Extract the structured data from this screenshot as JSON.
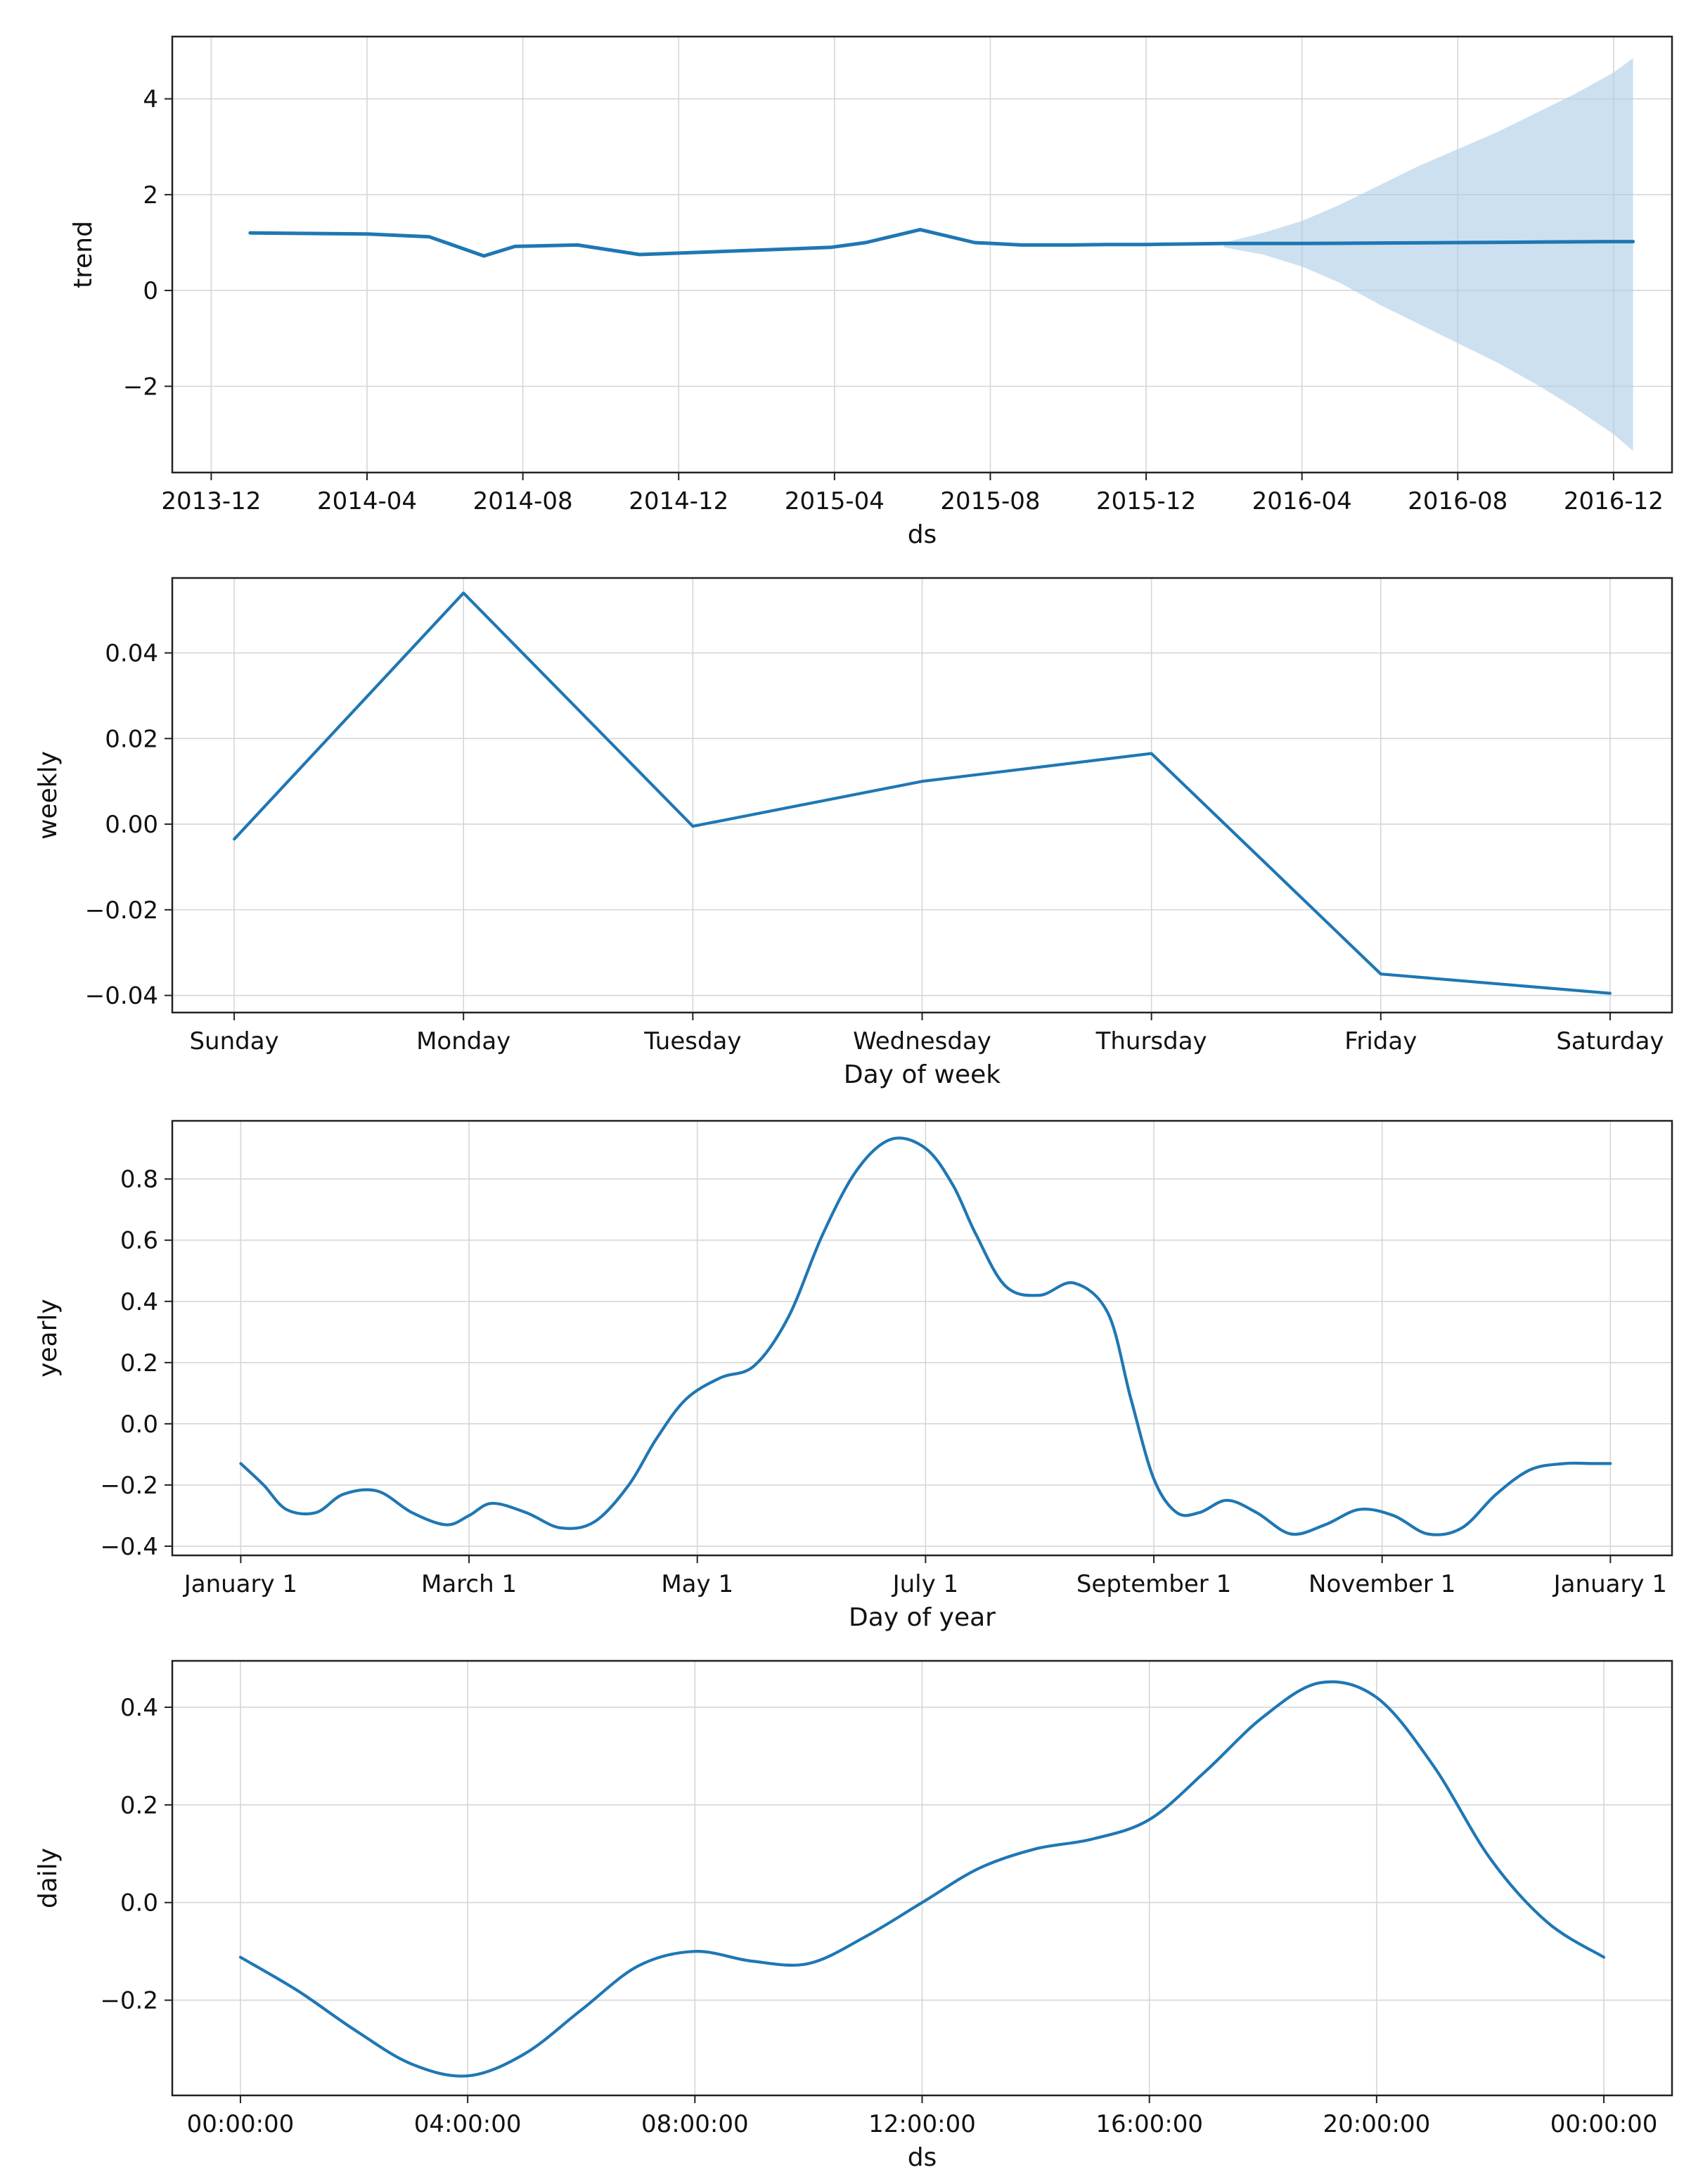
{
  "colors": {
    "line": "#1f77b4",
    "band": "#aecde6",
    "grid": "#d6d6d6"
  },
  "chart_data": [
    {
      "type": "area",
      "name": "trend",
      "xlabel": "ds",
      "ylabel": "trend",
      "xlim": [
        -1.0,
        37.5
      ],
      "ylim": [
        -3.8,
        5.3
      ],
      "x_ticks": [
        0,
        4,
        8,
        12,
        16,
        20,
        24,
        28,
        32,
        36
      ],
      "x_tick_labels": [
        "2013-12",
        "2014-04",
        "2014-08",
        "2014-12",
        "2015-04",
        "2015-08",
        "2015-12",
        "2016-04",
        "2016-08",
        "2016-12"
      ],
      "y_ticks": [
        -2,
        0,
        2,
        4
      ],
      "y_tick_labels": [
        "−2",
        "0",
        "2",
        "4"
      ],
      "grid": true,
      "series": [
        {
          "name": "trend",
          "x": [
            1.0,
            4.0,
            5.6,
            7.0,
            7.8,
            9.4,
            11.0,
            15.9,
            16.8,
            18.2,
            19.6,
            20.8,
            22.0,
            23.0,
            24.0,
            25.0,
            26.0,
            28.0,
            30.0,
            32.0,
            34.0,
            36.0,
            36.5
          ],
          "y": [
            1.2,
            1.18,
            1.12,
            0.72,
            0.92,
            0.95,
            0.75,
            0.9,
            1.0,
            1.27,
            1.0,
            0.95,
            0.95,
            0.96,
            0.96,
            0.97,
            0.98,
            0.98,
            0.99,
            1.0,
            1.01,
            1.02,
            1.02
          ]
        }
      ],
      "band": {
        "name": "trend uncertainty",
        "x": [
          26.0,
          27.0,
          28.0,
          29.0,
          30.0,
          31.0,
          32.0,
          33.0,
          34.0,
          35.0,
          36.0,
          36.5
        ],
        "upper": [
          1.0,
          1.2,
          1.45,
          1.8,
          2.2,
          2.6,
          2.95,
          3.3,
          3.7,
          4.1,
          4.55,
          4.85
        ],
        "lower": [
          0.9,
          0.75,
          0.5,
          0.15,
          -0.3,
          -0.7,
          -1.1,
          -1.5,
          -1.95,
          -2.45,
          -3.0,
          -3.35
        ]
      }
    },
    {
      "type": "line",
      "name": "weekly",
      "xlabel": "Day of week",
      "ylabel": "weekly",
      "xlim": [
        -0.27,
        6.27
      ],
      "ylim": [
        -0.044,
        0.0575
      ],
      "x_ticks": [
        0,
        1,
        2,
        3,
        4,
        5,
        6
      ],
      "x_tick_labels": [
        "Sunday",
        "Monday",
        "Tuesday",
        "Wednesday",
        "Thursday",
        "Friday",
        "Saturday"
      ],
      "y_ticks": [
        -0.04,
        -0.02,
        0.0,
        0.02,
        0.04
      ],
      "y_tick_labels": [
        "−0.04",
        "−0.02",
        "0.00",
        "0.02",
        "0.04"
      ],
      "grid": true,
      "series": [
        {
          "name": "weekly",
          "x": [
            0,
            1,
            2,
            3,
            4,
            5,
            6
          ],
          "y": [
            -0.0035,
            0.054,
            -0.0005,
            0.01,
            0.0165,
            -0.035,
            -0.0395
          ]
        }
      ]
    },
    {
      "type": "line",
      "name": "yearly",
      "xlabel": "Day of year",
      "ylabel": "yearly",
      "xlim": [
        -0.3,
        6.27
      ],
      "ylim": [
        -0.43,
        0.99
      ],
      "x_ticks": [
        0,
        1,
        2,
        3,
        4,
        5,
        6
      ],
      "x_tick_labels": [
        "January 1",
        "March 1",
        "May 1",
        "July 1",
        "September 1",
        "November 1",
        "January 1"
      ],
      "y_ticks": [
        -0.4,
        -0.2,
        0.0,
        0.2,
        0.4,
        0.6,
        0.8
      ],
      "y_tick_labels": [
        "−0.4",
        "−0.2",
        "0.0",
        "0.2",
        "0.4",
        "0.6",
        "0.8"
      ],
      "grid": true,
      "series": [
        {
          "name": "yearly",
          "x": [
            0.0,
            0.1,
            0.2,
            0.33,
            0.45,
            0.6,
            0.75,
            0.9,
            1.0,
            1.1,
            1.25,
            1.4,
            1.55,
            1.7,
            1.82,
            1.95,
            2.1,
            2.25,
            2.4,
            2.55,
            2.7,
            2.85,
            3.0,
            3.12,
            3.22,
            3.35,
            3.5,
            3.65,
            3.8,
            3.9,
            4.0,
            4.1,
            4.2,
            4.32,
            4.45,
            4.6,
            4.75,
            4.9,
            5.05,
            5.2,
            5.35,
            5.5,
            5.65,
            5.8,
            5.92,
            6.0
          ],
          "y": [
            -0.13,
            -0.2,
            -0.28,
            -0.29,
            -0.23,
            -0.22,
            -0.29,
            -0.33,
            -0.3,
            -0.26,
            -0.29,
            -0.34,
            -0.32,
            -0.2,
            -0.05,
            0.08,
            0.15,
            0.19,
            0.35,
            0.62,
            0.83,
            0.93,
            0.9,
            0.78,
            0.62,
            0.45,
            0.42,
            0.46,
            0.36,
            0.08,
            -0.18,
            -0.29,
            -0.29,
            -0.25,
            -0.29,
            -0.36,
            -0.33,
            -0.28,
            -0.3,
            -0.36,
            -0.34,
            -0.23,
            -0.15,
            -0.13,
            -0.13,
            -0.13
          ]
        }
      ]
    },
    {
      "type": "line",
      "name": "daily",
      "xlabel": "ds",
      "ylabel": "daily",
      "xlim": [
        -1.2,
        25.2
      ],
      "ylim": [
        -0.395,
        0.495
      ],
      "x_ticks": [
        0,
        4,
        8,
        12,
        16,
        20,
        24
      ],
      "x_tick_labels": [
        "00:00:00",
        "04:00:00",
        "08:00:00",
        "12:00:00",
        "16:00:00",
        "20:00:00",
        "00:00:00"
      ],
      "y_ticks": [
        -0.2,
        0.0,
        0.2,
        0.4
      ],
      "y_tick_labels": [
        "−0.2",
        "0.0",
        "0.2",
        "0.4"
      ],
      "grid": true,
      "series": [
        {
          "name": "daily",
          "x": [
            0,
            1,
            2,
            3,
            4,
            5,
            6,
            7,
            8,
            9,
            10,
            11,
            12,
            13,
            14,
            15,
            16,
            17,
            18,
            19,
            20,
            21,
            22,
            23,
            24
          ],
          "y": [
            -0.112,
            -0.18,
            -0.26,
            -0.33,
            -0.355,
            -0.31,
            -0.22,
            -0.13,
            -0.1,
            -0.12,
            -0.125,
            -0.07,
            0.0,
            0.07,
            0.11,
            0.13,
            0.17,
            0.27,
            0.38,
            0.45,
            0.42,
            0.28,
            0.09,
            -0.04,
            -0.112
          ]
        }
      ]
    }
  ]
}
